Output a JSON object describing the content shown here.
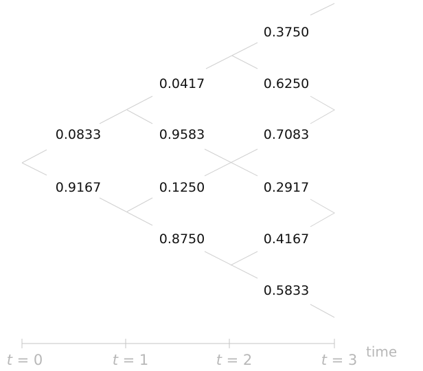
{
  "tree": {
    "t1": {
      "up": "0.0833",
      "down": "0.9167"
    },
    "t2": {
      "uu": "0.0417",
      "ud": "0.9583",
      "du": "0.1250",
      "dd": "0.8750"
    },
    "t3": {
      "uuu": "0.3750",
      "uud": "0.6250",
      "udu": "0.7083",
      "udd": "0.2917",
      "duu": "0.4167",
      "dud": "0.5833"
    }
  },
  "colors": {
    "edge": "#d0d0d0",
    "axis": "#c4c4c4",
    "axis_text": "#b8b8b8",
    "node_text": "#111111"
  },
  "axis": {
    "var": "t",
    "eq": "=",
    "ticks": [
      "0",
      "1",
      "2",
      "3"
    ],
    "label": "time"
  }
}
